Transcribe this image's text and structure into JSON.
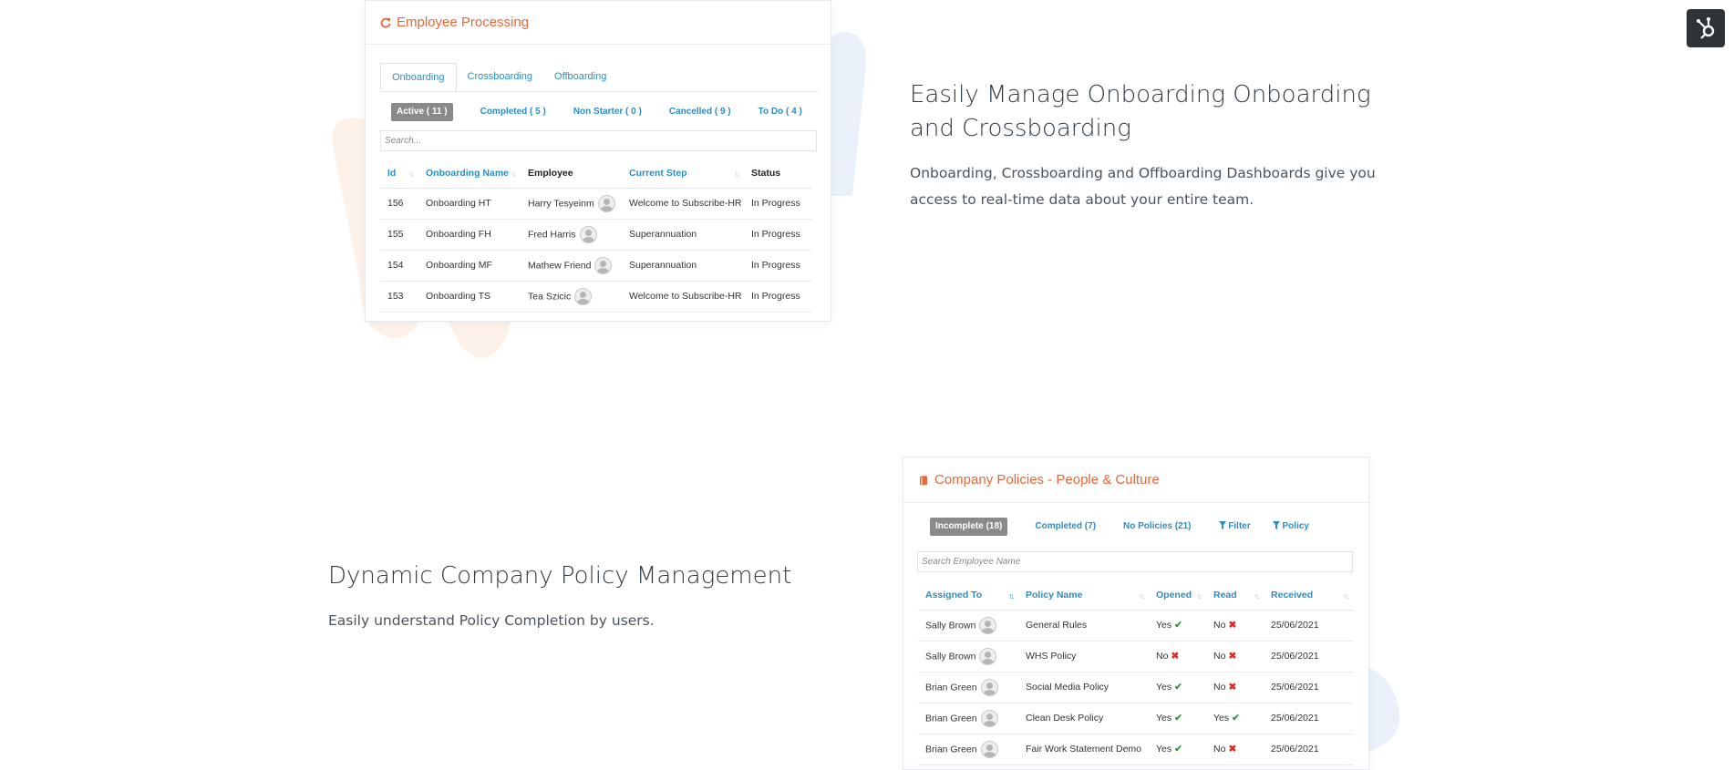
{
  "colors": {
    "accent_orange": "#e8683a",
    "link_blue": "#2a8ec5",
    "status_orange": "#f0932e",
    "check_green": "#2f9a3f",
    "cross_red": "#e12b2b",
    "blob_orange": "#fdf2ea",
    "blob_blue": "#eaf1fa"
  },
  "onboarding": {
    "title": "Employee Processing",
    "icon": "refresh-icon",
    "tabs": [
      "Onboarding",
      "Crossboarding",
      "Offboarding"
    ],
    "filters": [
      "Active ( 11 )",
      "Completed ( 5 )",
      "Non Starter ( 0 )",
      "Cancelled ( 9 )",
      "To Do ( 4 )"
    ],
    "search_placeholder": "Search...",
    "columns": [
      "Id",
      "Onboarding Name",
      "Employee",
      "Current Step",
      "Status"
    ],
    "rows": [
      {
        "id": "156",
        "name": "Onboarding HT",
        "employee": "Harry Tesyeinm",
        "step": "Welcome to Subscribe-HR",
        "status": "In Progress"
      },
      {
        "id": "155",
        "name": "Onboarding FH",
        "employee": "Fred Harris",
        "step": "Superannuation",
        "status": "In Progress"
      },
      {
        "id": "154",
        "name": "Onboarding MF",
        "employee": "Mathew Friend",
        "step": "Superannuation",
        "status": "In Progress"
      },
      {
        "id": "153",
        "name": "Onboarding TS",
        "employee": "Tea Szicic",
        "step": "Welcome to Subscribe-HR",
        "status": "In Progress"
      }
    ]
  },
  "section1": {
    "heading": "Easily Manage Onboarding Onboarding and Crossboarding",
    "text": "Onboarding, Crossboarding and Offboarding Dashboards give you access to real-time data about your entire team."
  },
  "section2": {
    "heading": "Dynamic Company Policy Management",
    "text": "Easily understand Policy Completion by users."
  },
  "policies": {
    "title": "Company Policies - People & Culture",
    "icon": "book-icon",
    "filters": [
      "Incomplete (18)",
      "Completed (7)",
      "No Policies (21)"
    ],
    "filter_button": "Filter",
    "policy_button": "Policy",
    "search_placeholder": "Search Employee Name",
    "columns": [
      "Assigned To",
      "Policy Name",
      "Opened",
      "Read",
      "Received"
    ],
    "rows": [
      {
        "assigned": "Sally Brown",
        "policy": "General Rules",
        "opened": "Yes",
        "opened_ok": true,
        "read": "No",
        "read_ok": false,
        "received": "25/06/2021"
      },
      {
        "assigned": "Sally Brown",
        "policy": "WHS Policy",
        "opened": "No",
        "opened_ok": false,
        "read": "No",
        "read_ok": false,
        "received": "25/06/2021"
      },
      {
        "assigned": "Brian Green",
        "policy": "Social Media Policy",
        "opened": "Yes",
        "opened_ok": true,
        "read": "No",
        "read_ok": false,
        "received": "25/06/2021"
      },
      {
        "assigned": "Brian Green",
        "policy": "Clean Desk Policy",
        "opened": "Yes",
        "opened_ok": true,
        "read": "Yes",
        "read_ok": true,
        "received": "25/06/2021"
      },
      {
        "assigned": "Brian Green",
        "policy": "Fair Work Statement Demo",
        "opened": "Yes",
        "opened_ok": true,
        "read": "No",
        "read_ok": false,
        "received": "25/06/2021"
      }
    ]
  },
  "widget": {
    "icon": "hubspot-icon"
  }
}
